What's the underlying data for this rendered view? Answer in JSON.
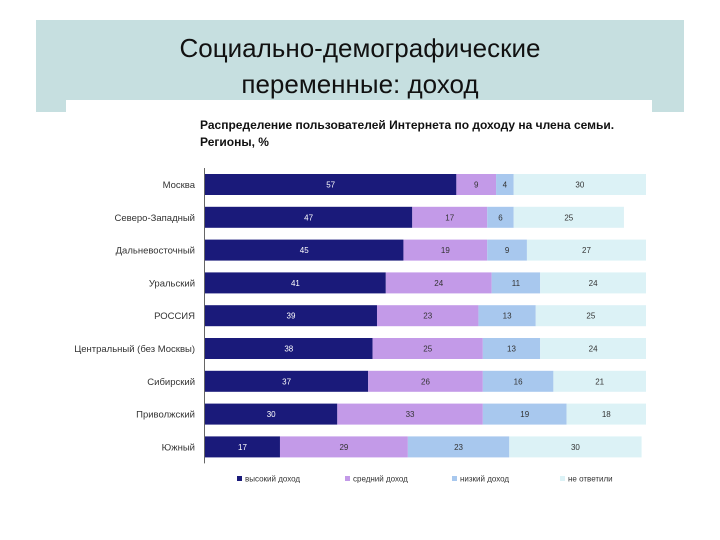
{
  "slide": {
    "title_line1": "Социально-демографические",
    "title_line2": "переменные: доход"
  },
  "chart_data": {
    "type": "bar",
    "stacked": true,
    "orientation": "horizontal",
    "title_line1": "Распределение пользователей Интернета по доходу на члена семьи.",
    "title_line2": "Регионы, %",
    "categories": [
      "Москва",
      "Северо-Западный",
      "Дальневосточный",
      "Уральский",
      "РОССИЯ",
      "Центральный (без Москвы)",
      "Сибирский",
      "Приволжский",
      "Южный"
    ],
    "series": [
      {
        "name": "высокий доход",
        "color": "#1a1a7a",
        "label_color": "#ffffff",
        "values": [
          57,
          47,
          45,
          41,
          39,
          38,
          37,
          30,
          17
        ]
      },
      {
        "name": "средний доход",
        "color": "#c39ae8",
        "label_color": "#333333",
        "values": [
          9,
          17,
          19,
          24,
          23,
          25,
          26,
          33,
          29
        ]
      },
      {
        "name": "низкий доход",
        "color": "#a8c8ee",
        "label_color": "#333333",
        "values": [
          4,
          6,
          9,
          11,
          13,
          13,
          16,
          19,
          23
        ]
      },
      {
        "name": "не ответили",
        "color": "#dcf2f6",
        "label_color": "#333333",
        "values": [
          30,
          25,
          27,
          24,
          25,
          24,
          21,
          18,
          30
        ]
      }
    ],
    "xlim": [
      0,
      100
    ],
    "grid": false,
    "legend_position": "bottom"
  }
}
